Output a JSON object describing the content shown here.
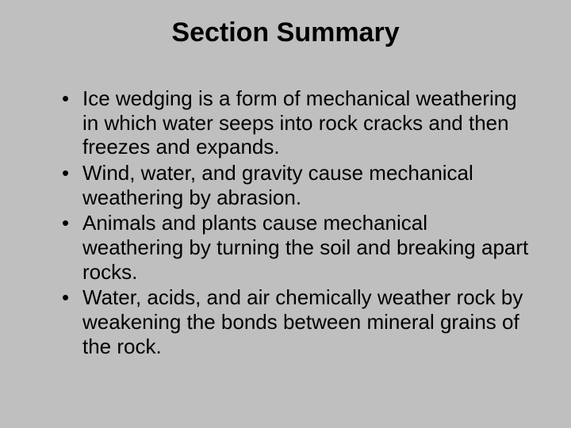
{
  "slide": {
    "title": "Section Summary",
    "bullets": [
      "Ice wedging is a form of mechanical weathering in which water seeps into rock cracks and then freezes and expands.",
      "Wind, water, and gravity cause mechanical weathering by abrasion.",
      "Animals and plants cause mechanical weathering by turning the soil and breaking apart rocks.",
      "Water, acids, and air chemically weather rock by weakening the bonds between mineral grains of the rock."
    ],
    "background_color": "#bfbfbf",
    "title_fontsize": 34,
    "body_fontsize": 26,
    "text_color": "#000000",
    "font_family": "Arial"
  }
}
